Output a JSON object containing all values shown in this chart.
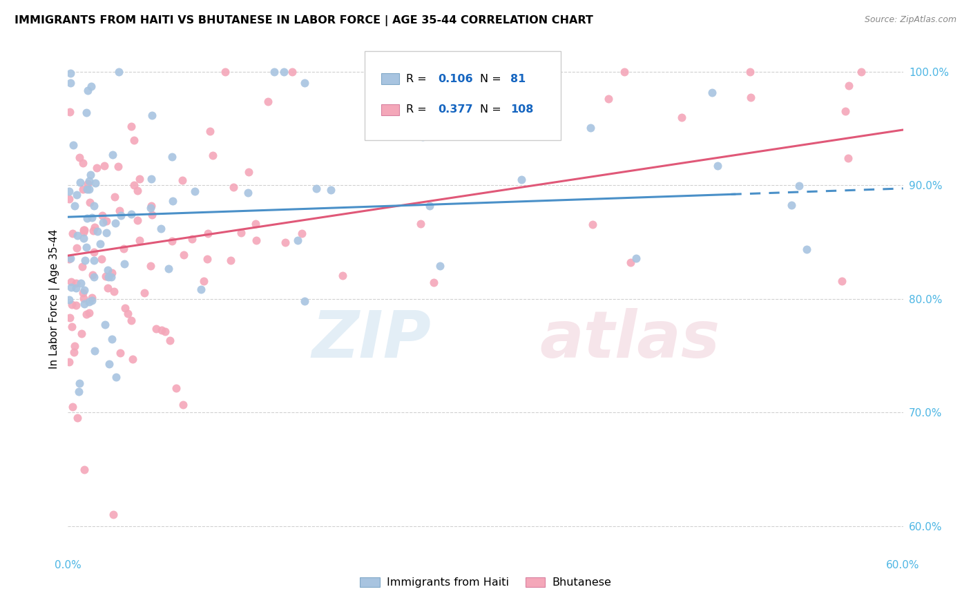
{
  "title": "IMMIGRANTS FROM HAITI VS BHUTANESE IN LABOR FORCE | AGE 35-44 CORRELATION CHART",
  "source": "Source: ZipAtlas.com",
  "ylabel": "In Labor Force | Age 35-44",
  "xlim": [
    0.0,
    0.6
  ],
  "ylim": [
    0.575,
    1.025
  ],
  "xticks": [
    0.0,
    0.1,
    0.2,
    0.3,
    0.4,
    0.5,
    0.6
  ],
  "xticklabels": [
    "0.0%",
    "",
    "",
    "",
    "",
    "",
    "60.0%"
  ],
  "yticks_right": [
    0.6,
    0.7,
    0.8,
    0.9,
    1.0
  ],
  "yticklabels_right": [
    "60.0%",
    "70.0%",
    "80.0%",
    "90.0%",
    "100.0%"
  ],
  "haiti_color": "#a8c4e0",
  "bhutan_color": "#f4a7b9",
  "haiti_line_color": "#4a90c8",
  "bhutan_line_color": "#e05878",
  "haiti_R": 0.106,
  "haiti_N": 81,
  "bhutan_R": 0.377,
  "bhutan_N": 108,
  "legend_R_color": "#1565c0",
  "axis_color": "#4db6e4",
  "grid_color": "#d0d0d0",
  "title_fontsize": 11.5,
  "tick_fontsize": 11,
  "ylabel_fontsize": 11
}
